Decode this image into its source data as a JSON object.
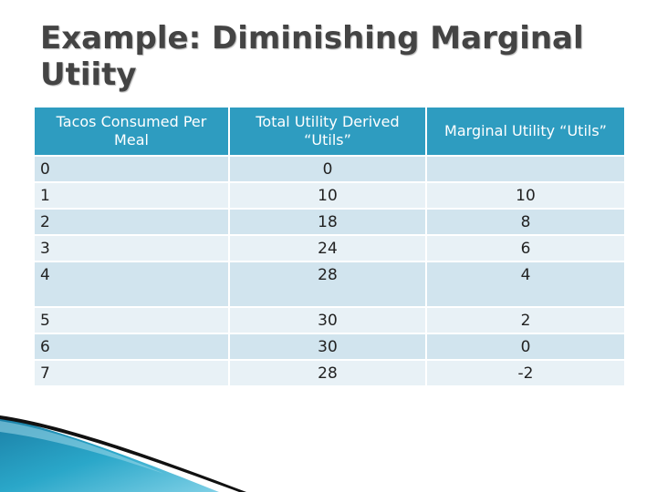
{
  "slide": {
    "title": "Example: Diminishing Marginal Utiity"
  },
  "table": {
    "headers": [
      "Tacos Consumed Per Meal",
      "Total Utility Derived “Utils”",
      "Marginal Utility “Utils”"
    ],
    "rows": [
      [
        "0",
        "0",
        ""
      ],
      [
        "1",
        "10",
        "10"
      ],
      [
        "2",
        "18",
        "8"
      ],
      [
        "3",
        "24",
        "6"
      ],
      [
        "4",
        "28",
        "4"
      ],
      [
        "5",
        "30",
        "2"
      ],
      [
        "6",
        "30",
        "0"
      ],
      [
        "7",
        "28",
        "-2"
      ]
    ]
  },
  "colors": {
    "header_fill": "#2e9cc0",
    "row_fill_dark": "#d1e4ee",
    "row_fill_light": "#e8f1f6",
    "accent_swoosh": "#2aa7c9"
  }
}
